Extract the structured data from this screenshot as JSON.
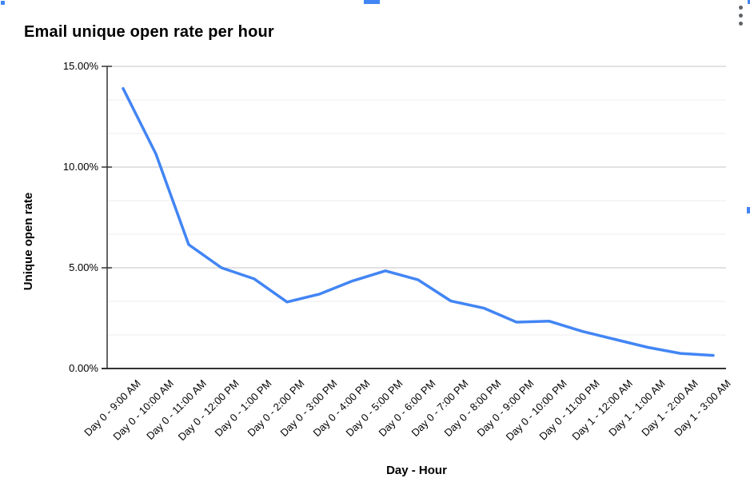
{
  "chart_data": {
    "type": "line",
    "title": "Email unique open rate per hour",
    "xlabel": "Day - Hour",
    "ylabel": "Unique open rate",
    "categories": [
      "Day 0 - 9:00 AM",
      "Day 0 - 10:00 AM",
      "Day 0 - 11:00 AM",
      "Day 0 - 12:00 PM",
      "Day 0 - 1:00 PM",
      "Day 0 - 2:00 PM",
      "Day 0 - 3:00 PM",
      "Day 0 - 4:00 PM",
      "Day 0 - 5:00 PM",
      "Day 0 - 6:00 PM",
      "Day 0 - 7:00 PM",
      "Day 0 - 8:00 PM",
      "Day 0 - 9:00 PM",
      "Day 0 - 10:00 PM",
      "Day 0 - 11:00 PM",
      "Day 1 - 12:00 AM",
      "Day 1 - 1:00 AM",
      "Day 1 - 2:00 AM",
      "Day 1 - 3:00 AM"
    ],
    "values": [
      13.9,
      10.65,
      6.15,
      5.0,
      4.45,
      3.3,
      3.7,
      4.35,
      4.85,
      4.4,
      3.35,
      3.0,
      2.3,
      2.35,
      1.85,
      1.45,
      1.05,
      0.75,
      0.65
    ],
    "unit": "%",
    "ylim": [
      0,
      15
    ],
    "y_tick_labels": [
      "15.00%",
      "10.00%",
      "5.00%",
      "0.00%"
    ],
    "y_tick_values": [
      15,
      10,
      5,
      0
    ],
    "y_tick_step": 5,
    "y_minor_divisions": 3,
    "grid": {
      "major": true,
      "minor": true
    },
    "legend_position": "none",
    "markers": "none"
  },
  "colors": {
    "series": "#4285f4",
    "selection_handle": "#4285f4",
    "major_grid": "#c4c4c4",
    "minor_grid": "#ececec",
    "axis": "#333333",
    "text": "#000000",
    "menu_dots": "#5f6368",
    "background": "#ffffff"
  },
  "icons": {
    "chart_menu": "vertical-ellipsis-icon"
  }
}
